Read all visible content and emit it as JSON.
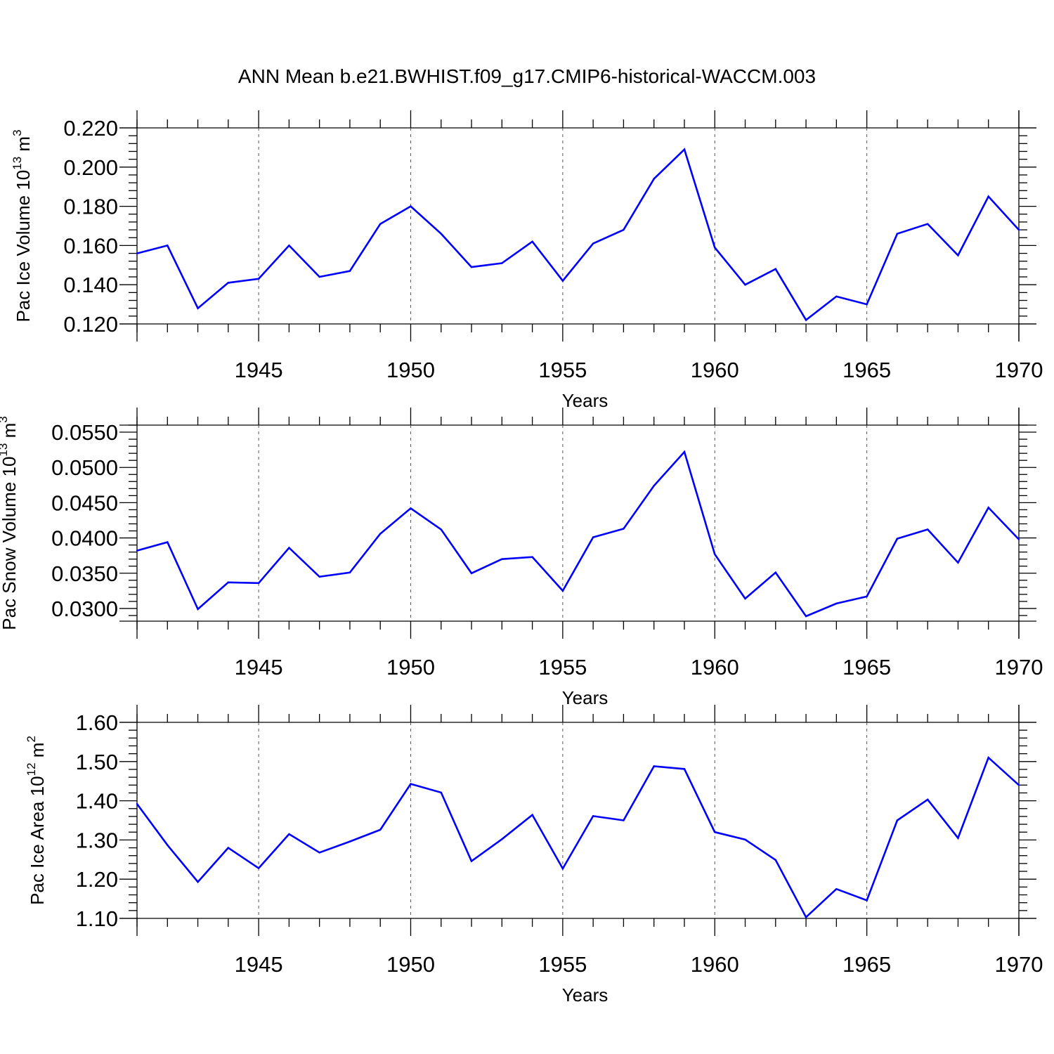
{
  "title": "ANN Mean b.e21.BWHIST.f09_g17.CMIP6-historical-WACCM.003",
  "line_color": "#0000ff",
  "chart_data": [
    {
      "type": "line",
      "title": "",
      "xlabel": "Years",
      "ylabel": {
        "text": "Pac Ice Volume 10",
        "exponent": "13",
        "unit": " m",
        "unit_exponent": "3"
      },
      "xlim": [
        1941,
        1970
      ],
      "ylim": [
        0.12,
        0.22
      ],
      "xticks": [
        "1945",
        "1950",
        "1955",
        "1960",
        "1965",
        "1970"
      ],
      "yticks": [
        "0.120",
        "0.140",
        "0.160",
        "0.180",
        "0.200",
        "0.220"
      ],
      "grid": "vertical dashed at labeled years",
      "x": [
        1941,
        1942,
        1943,
        1944,
        1945,
        1946,
        1947,
        1948,
        1949,
        1950,
        1951,
        1952,
        1953,
        1954,
        1955,
        1956,
        1957,
        1958,
        1959,
        1960,
        1961,
        1962,
        1963,
        1964,
        1965,
        1966,
        1967,
        1968,
        1969,
        1970
      ],
      "series": [
        {
          "values": [
            0.156,
            0.16,
            0.128,
            0.141,
            0.143,
            0.16,
            0.144,
            0.147,
            0.171,
            0.18,
            0.166,
            0.149,
            0.151,
            0.162,
            0.142,
            0.161,
            0.168,
            0.194,
            0.209,
            0.159,
            0.14,
            0.148,
            0.122,
            0.134,
            0.13,
            0.166,
            0.171,
            0.155,
            0.185,
            0.168
          ]
        }
      ]
    },
    {
      "type": "line",
      "title": "",
      "xlabel": "Years",
      "ylabel": {
        "text": "Pac Snow Volume 10",
        "exponent": "13",
        "unit": " m",
        "unit_exponent": "3"
      },
      "xlim": [
        1941,
        1970
      ],
      "ylim": [
        0.0282,
        0.056
      ],
      "xticks": [
        "1945",
        "1950",
        "1955",
        "1960",
        "1965",
        "1970"
      ],
      "yticks": [
        "0.0300",
        "0.0350",
        "0.0400",
        "0.0450",
        "0.0500",
        "0.0550"
      ],
      "grid": "vertical dashed at labeled years",
      "x": [
        1941,
        1942,
        1943,
        1944,
        1945,
        1946,
        1947,
        1948,
        1949,
        1950,
        1951,
        1952,
        1953,
        1954,
        1955,
        1956,
        1957,
        1958,
        1959,
        1960,
        1961,
        1962,
        1963,
        1964,
        1965,
        1966,
        1967,
        1968,
        1969,
        1970
      ],
      "series": [
        {
          "values": [
            0.0382,
            0.0394,
            0.0299,
            0.0337,
            0.0336,
            0.0386,
            0.0345,
            0.0351,
            0.0406,
            0.0442,
            0.0412,
            0.035,
            0.037,
            0.0373,
            0.0325,
            0.0401,
            0.0413,
            0.0474,
            0.0522,
            0.0377,
            0.0314,
            0.0351,
            0.0289,
            0.0307,
            0.0317,
            0.0399,
            0.0412,
            0.0365,
            0.0443,
            0.0398
          ]
        }
      ]
    },
    {
      "type": "line",
      "title": "",
      "xlabel": "Years",
      "ylabel": {
        "text": "Pac Ice Area 10",
        "exponent": "12",
        "unit": " m",
        "unit_exponent": "2"
      },
      "xlim": [
        1941,
        1970
      ],
      "ylim": [
        1.1,
        1.6
      ],
      "xticks": [
        "1945",
        "1950",
        "1955",
        "1960",
        "1965",
        "1970"
      ],
      "yticks": [
        "1.10",
        "1.20",
        "1.30",
        "1.40",
        "1.50",
        "1.60"
      ],
      "grid": "vertical dashed at labeled years",
      "x": [
        1941,
        1942,
        1943,
        1944,
        1945,
        1946,
        1947,
        1948,
        1949,
        1950,
        1951,
        1952,
        1953,
        1954,
        1955,
        1956,
        1957,
        1958,
        1959,
        1960,
        1961,
        1962,
        1963,
        1964,
        1965,
        1966,
        1967,
        1968,
        1969,
        1970
      ],
      "series": [
        {
          "values": [
            1.392,
            1.287,
            1.193,
            1.28,
            1.228,
            1.315,
            1.268,
            1.296,
            1.326,
            1.443,
            1.421,
            1.246,
            1.302,
            1.364,
            1.227,
            1.361,
            1.35,
            1.488,
            1.481,
            1.32,
            1.301,
            1.249,
            1.103,
            1.175,
            1.146,
            1.35,
            1.403,
            1.305,
            1.51,
            1.44
          ]
        }
      ]
    }
  ]
}
